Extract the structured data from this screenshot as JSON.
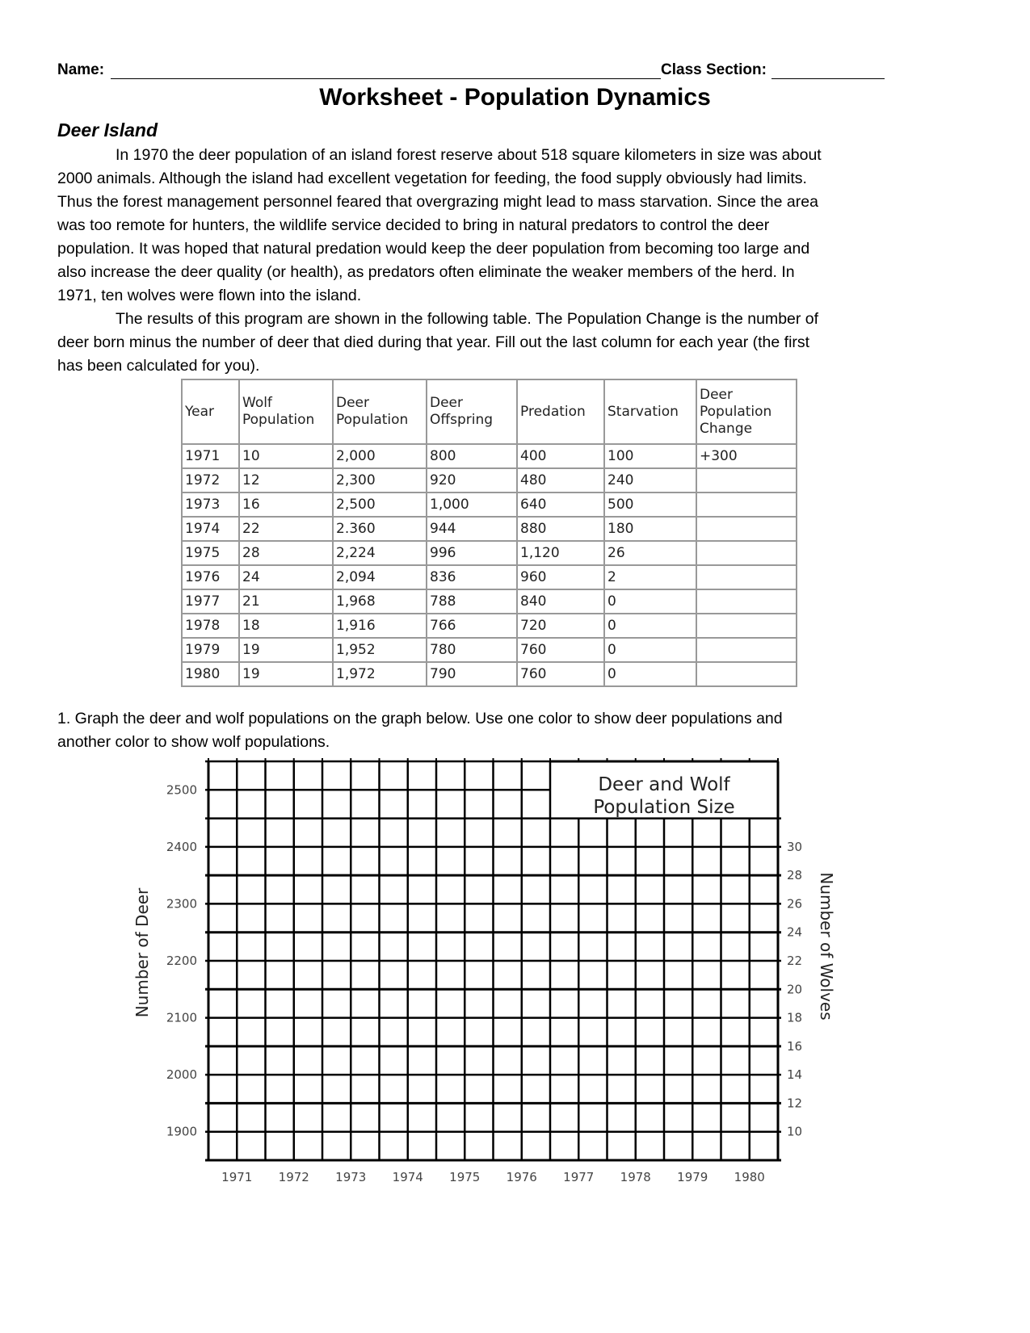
{
  "header": {
    "name_label": "Name:",
    "class_label": "Class Section:"
  },
  "title": "Worksheet - Population Dynamics",
  "section": "Deer Island",
  "paragraph_lines": [
    "In 1970 the deer population of an island forest reserve about 518 square kilometers in size was about",
    "2000 animals. Although the island had excellent vegetation for feeding, the food supply obviously had limits.",
    "Thus the forest management personnel feared that overgrazing might lead to mass starvation. Since the area",
    "was too remote for hunters, the wildlife service decided to bring in natural predators to control the deer",
    "population. It was hoped that natural predation would keep the deer population from becoming too large and",
    "also increase the deer quality (or health), as predators often eliminate the weaker members of the herd. In",
    "1971, ten wolves were flown into the island.",
    "The results of this program are shown in the following table. The Population Change is the number of",
    "deer born minus the number of deer that died during that year. Fill out the last column for each year (the first",
    "has been calculated for you)."
  ],
  "table": {
    "headers": [
      [
        "Year"
      ],
      [
        "Wolf",
        "Population"
      ],
      [
        "Deer",
        "Population"
      ],
      [
        "Deer",
        "Offspring"
      ],
      [
        "Predation"
      ],
      [
        "Starvation"
      ],
      [
        "Deer",
        "Population",
        "Change"
      ]
    ],
    "rows": [
      [
        "1971",
        "10",
        "2,000",
        "800",
        "400",
        "100",
        "+300"
      ],
      [
        "1972",
        "12",
        "2,300",
        "920",
        "480",
        "240",
        ""
      ],
      [
        "1973",
        "16",
        "2,500",
        "1,000",
        "640",
        "500",
        ""
      ],
      [
        "1974",
        "22",
        "2.360",
        "944",
        "880",
        "180",
        ""
      ],
      [
        "1975",
        "28",
        "2,224",
        "996",
        "1,120",
        "26",
        ""
      ],
      [
        "1976",
        "24",
        "2,094",
        "836",
        "960",
        "2",
        ""
      ],
      [
        "1977",
        "21",
        "1,968",
        "788",
        "840",
        "0",
        ""
      ],
      [
        "1978",
        "18",
        "1,916",
        "766",
        "720",
        "0",
        ""
      ],
      [
        "1979",
        "19",
        "1,952",
        "780",
        "760",
        "0",
        ""
      ],
      [
        "1980",
        "19",
        "1,972",
        "790",
        "760",
        "0",
        ""
      ]
    ]
  },
  "question_lines": [
    "1. Graph the deer and wolf populations on the graph below. Use one color to show deer populations and",
    "another color to show wolf populations."
  ],
  "graph": {
    "title_lines": [
      "Deer and Wolf",
      "Population Size"
    ],
    "left_axis_label": "Number of Deer",
    "right_axis_label": "Number of Wolves",
    "deer_ticks": [
      "2500",
      "2400",
      "2300",
      "2200",
      "2100",
      "2000",
      "1900"
    ],
    "wolf_ticks": [
      "30",
      "28",
      "26",
      "24",
      "22",
      "20",
      "18",
      "16",
      "14",
      "12",
      "10"
    ],
    "year_ticks": [
      "1971",
      "1972",
      "1973",
      "1974",
      "1975",
      "1976",
      "1977",
      "1978",
      "1979",
      "1980"
    ]
  }
}
